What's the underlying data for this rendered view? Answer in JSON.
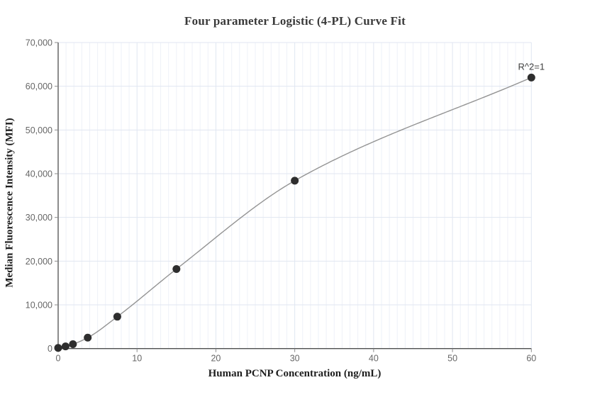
{
  "chart_data": {
    "type": "scatter",
    "title": "Four parameter Logistic (4-PL) Curve Fit",
    "xlabel": "Human PCNP Concentration (ng/mL)",
    "ylabel": "Median Fluorescence Intensity (MFI)",
    "annotation": {
      "text": "R^2=1",
      "x": 60,
      "y": 62000
    },
    "points": [
      {
        "x": 0,
        "y": 150
      },
      {
        "x": 0.938,
        "y": 500
      },
      {
        "x": 1.875,
        "y": 1000
      },
      {
        "x": 3.75,
        "y": 2500
      },
      {
        "x": 7.5,
        "y": 7300
      },
      {
        "x": 15,
        "y": 18200
      },
      {
        "x": 30,
        "y": 38400
      },
      {
        "x": 60,
        "y": 62000
      }
    ],
    "fit": "4-PL curve through all points",
    "xlim": [
      0,
      60
    ],
    "ylim": [
      0,
      70000
    ],
    "x_ticks": [
      0,
      10,
      20,
      30,
      40,
      50,
      60
    ],
    "y_ticks": [
      0,
      10000,
      20000,
      30000,
      40000,
      50000,
      60000,
      70000
    ],
    "x_minor_grid_step": 1,
    "x_major_grid_step": 10,
    "y_grid_step": 10000,
    "grid": "on",
    "legend": "none",
    "colors": {
      "background": "#ffffff",
      "point": "#2e2e2e",
      "curve": "#949494",
      "grid_minor": "#eef1f8",
      "grid_major": "#e0e6f1",
      "axis": "#4f4f4f",
      "tick": "#8a8a8a",
      "tick_label": "#666666",
      "title": "#3a3a3a",
      "axis_title": "#1e1e1e",
      "annotation": "#3f3f3f"
    }
  }
}
